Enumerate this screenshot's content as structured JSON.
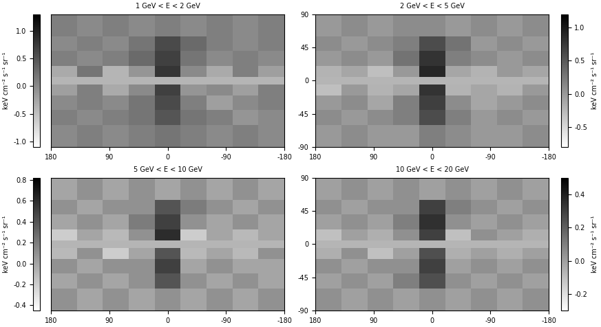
{
  "chart_data": [
    {
      "type": "heatmap",
      "title": "1 GeV < E < 2 GeV",
      "xlim": [
        180,
        -180
      ],
      "ylim": [
        -90,
        90
      ],
      "xticks": [
        180,
        90,
        0,
        -90,
        -180
      ],
      "tick_labels": "x",
      "lon_edges": [
        180,
        140,
        100,
        60,
        20,
        -20,
        -60,
        -100,
        -140,
        -180
      ],
      "lat_edges": [
        -90,
        -60,
        -40,
        -20,
        -5,
        5,
        20,
        40,
        60,
        90
      ],
      "cells": [
        [
          0.0,
          0.1,
          0.0,
          0.1,
          0.2,
          0.1,
          0.0,
          0.1,
          0.0
        ],
        [
          0.1,
          0.0,
          0.1,
          0.2,
          0.5,
          0.2,
          0.1,
          -0.1,
          0.0
        ],
        [
          0.0,
          0.1,
          0.0,
          0.2,
          0.6,
          0.1,
          -0.2,
          0.0,
          0.1
        ],
        [
          -0.2,
          0.1,
          -0.3,
          0.0,
          0.7,
          -0.1,
          0.0,
          -0.2,
          0.1
        ],
        [
          null,
          null,
          null,
          null,
          null,
          null,
          null,
          null,
          null
        ],
        [
          -0.3,
          0.2,
          -0.4,
          -0.1,
          0.8,
          0.0,
          -0.3,
          0.1,
          -0.2
        ],
        [
          0.1,
          0.0,
          0.1,
          0.3,
          0.7,
          0.2,
          0.0,
          0.1,
          0.0
        ],
        [
          0.0,
          0.1,
          0.0,
          0.2,
          0.6,
          0.3,
          0.1,
          0.0,
          0.1
        ],
        [
          0.1,
          0.0,
          0.1,
          0.0,
          0.1,
          0.0,
          0.1,
          0.0,
          0.1
        ]
      ],
      "colorbar_label": "keV cm⁻² s⁻¹ sr⁻¹",
      "colorbar_side": "left",
      "colorbar_range": [
        -1.1,
        1.3
      ],
      "colorbar_ticks": [
        {
          "value": -1.0,
          "label": "-1.0"
        },
        -0.5,
        {
          "value": 0,
          "label": "0.0"
        },
        0.5,
        {
          "value": 1.0,
          "label": "1.0"
        }
      ]
    },
    {
      "type": "heatmap",
      "title": "2 GeV < E < 5 GeV",
      "xlim": [
        180,
        -180
      ],
      "ylim": [
        -90,
        90
      ],
      "xticks": [
        180,
        90,
        0,
        -90,
        -180
      ],
      "yticks": [
        90,
        45,
        0,
        -45,
        -90
      ],
      "lon_edges": [
        180,
        140,
        100,
        60,
        20,
        -20,
        -60,
        -100,
        -140,
        -180
      ],
      "lat_edges": [
        -90,
        -60,
        -40,
        -20,
        -5,
        5,
        20,
        40,
        60,
        90
      ],
      "cells": [
        [
          0.0,
          0.1,
          0.0,
          0.0,
          0.2,
          0.1,
          0.0,
          0.0,
          0.1
        ],
        [
          0.1,
          0.0,
          0.1,
          0.2,
          0.6,
          0.2,
          0.0,
          0.1,
          0.0
        ],
        [
          0.0,
          0.1,
          -0.1,
          0.2,
          0.7,
          0.1,
          -0.1,
          0.0,
          0.1
        ],
        [
          -0.3,
          0.0,
          -0.2,
          -0.1,
          0.8,
          -0.2,
          -0.1,
          -0.2,
          0.0
        ],
        [
          null,
          null,
          null,
          null,
          null,
          null,
          null,
          null,
          null
        ],
        [
          -0.2,
          -0.1,
          -0.3,
          0.0,
          0.9,
          -0.1,
          -0.2,
          0.0,
          -0.1
        ],
        [
          0.0,
          0.1,
          0.0,
          0.3,
          0.8,
          0.2,
          0.1,
          0.0,
          0.1
        ],
        [
          0.1,
          0.0,
          0.1,
          0.2,
          0.6,
          0.3,
          0.0,
          0.1,
          0.0
        ],
        [
          0.0,
          0.1,
          0.0,
          0.1,
          0.1,
          0.0,
          0.1,
          0.0,
          0.1
        ]
      ],
      "colorbar_label": "keV cm⁻² s⁻¹ sr⁻¹",
      "colorbar_side": "right",
      "colorbar_range": [
        -0.8,
        1.2
      ],
      "colorbar_ticks": [
        -0.5,
        {
          "value": 0,
          "label": "0.0"
        },
        0.5,
        {
          "value": 1.0,
          "label": "1.0"
        }
      ]
    },
    {
      "type": "heatmap",
      "title": "5 GeV < E < 10 GeV",
      "xlim": [
        180,
        -180
      ],
      "ylim": [
        -90,
        90
      ],
      "xticks": [
        180,
        90,
        0,
        -90,
        -180
      ],
      "tick_labels": "x",
      "lon_edges": [
        180,
        140,
        100,
        60,
        20,
        -20,
        -60,
        -100,
        -140,
        -180
      ],
      "lat_edges": [
        -90,
        -60,
        -40,
        -20,
        -5,
        5,
        20,
        40,
        60,
        90
      ],
      "cells": [
        [
          0.1,
          0.0,
          0.1,
          0.0,
          0.1,
          0.0,
          0.1,
          0.0,
          0.1
        ],
        [
          0.0,
          0.1,
          0.0,
          0.1,
          0.4,
          0.1,
          0.0,
          0.1,
          0.0
        ],
        [
          0.1,
          0.0,
          0.1,
          0.1,
          0.5,
          0.0,
          0.1,
          0.0,
          0.0
        ],
        [
          -0.1,
          0.1,
          -0.2,
          0.0,
          0.4,
          -0.1,
          0.0,
          -0.1,
          0.1
        ],
        [
          null,
          null,
          null,
          null,
          null,
          null,
          null,
          null,
          null
        ],
        [
          -0.2,
          0.0,
          -0.1,
          0.1,
          0.6,
          -0.2,
          0.0,
          -0.1,
          0.0
        ],
        [
          0.0,
          0.1,
          0.0,
          0.2,
          0.5,
          0.1,
          0.0,
          0.1,
          0.0
        ],
        [
          0.1,
          0.0,
          0.1,
          0.1,
          0.4,
          0.2,
          0.1,
          0.0,
          0.1
        ],
        [
          0.0,
          0.1,
          0.0,
          0.1,
          0.0,
          0.1,
          0.0,
          0.1,
          0.0
        ]
      ],
      "colorbar_label": "keV cm⁻² s⁻¹ sr⁻¹",
      "colorbar_side": "left",
      "colorbar_range": [
        -0.45,
        0.82
      ],
      "colorbar_ticks": [
        -0.4,
        -0.2,
        {
          "value": 0,
          "label": "0.0"
        },
        0.2,
        0.4,
        0.6,
        0.8
      ]
    },
    {
      "type": "heatmap",
      "title": "10 GeV < E < 20 GeV",
      "xlim": [
        180,
        -180
      ],
      "ylim": [
        -90,
        90
      ],
      "xticks": [
        180,
        90,
        0,
        -90,
        -180
      ],
      "yticks": [
        90,
        45,
        0,
        -45,
        -90
      ],
      "lon_edges": [
        180,
        140,
        100,
        60,
        20,
        -20,
        -60,
        -100,
        -140,
        -180
      ],
      "lat_edges": [
        -90,
        -60,
        -40,
        -20,
        -5,
        5,
        20,
        40,
        60,
        90
      ],
      "cells": [
        [
          0.05,
          0.0,
          0.05,
          0.0,
          0.05,
          0.0,
          0.05,
          0.0,
          0.05
        ],
        [
          0.0,
          0.05,
          0.0,
          0.1,
          0.25,
          0.05,
          0.0,
          0.05,
          0.0
        ],
        [
          0.05,
          0.0,
          0.05,
          0.05,
          0.3,
          0.0,
          0.05,
          0.0,
          0.05
        ],
        [
          -0.05,
          0.05,
          -0.1,
          0.0,
          0.25,
          -0.05,
          0.0,
          -0.05,
          0.0
        ],
        [
          null,
          null,
          null,
          null,
          null,
          null,
          null,
          null,
          null
        ],
        [
          -0.1,
          0.0,
          -0.05,
          0.05,
          0.3,
          -0.1,
          0.05,
          0.0,
          -0.05
        ],
        [
          0.0,
          0.05,
          0.0,
          0.1,
          0.35,
          0.05,
          0.0,
          0.05,
          0.0
        ],
        [
          0.05,
          0.0,
          0.05,
          0.05,
          0.3,
          0.1,
          0.05,
          0.0,
          0.05
        ],
        [
          0.0,
          0.05,
          0.0,
          0.05,
          0.0,
          0.05,
          0.0,
          0.05,
          0.0
        ]
      ],
      "colorbar_label": "keV cm⁻² s⁻¹ sr⁻¹",
      "colorbar_side": "right",
      "colorbar_range": [
        -0.3,
        0.5
      ],
      "colorbar_ticks": [
        -0.2,
        {
          "value": 0,
          "label": "0.0"
        },
        0.2,
        0.4
      ]
    }
  ]
}
